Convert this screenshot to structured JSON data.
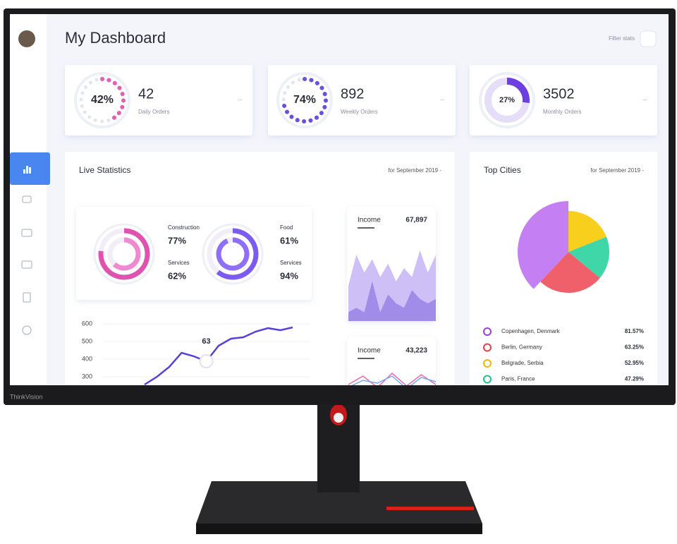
{
  "bezel": {
    "brand": "ThinkVision"
  },
  "header": {
    "title": "My Dashboard",
    "filter_label": "Filter stats"
  },
  "stat_cards": [
    {
      "percent": {
        "value": 42,
        "label": "42%"
      },
      "value": 42,
      "caption": "Daily Orders",
      "more": "...",
      "color": "#e25fb3"
    },
    {
      "percent": {
        "value": 74,
        "label": "74%"
      },
      "value": 892,
      "caption": "Weekly Orders",
      "more": "...",
      "color": "#6a4fe0"
    },
    {
      "percent": {
        "value": 27,
        "label": "27%"
      },
      "value": 3502,
      "caption": "Monthly Orders",
      "more": "...",
      "color": "#6b3fe0"
    }
  ],
  "live_statistics": {
    "title": "Live Statistics",
    "period": "for September 2019 -",
    "rings": [
      {
        "label": "Construction",
        "percent": {
          "value": 77,
          "label": "77%"
        },
        "color": "#e052b0"
      },
      {
        "label": "Services",
        "percent": {
          "value": 62,
          "label": "62%"
        },
        "color": "#f08ad0"
      },
      {
        "label": "Food",
        "percent": {
          "value": 61,
          "label": "61%"
        },
        "color": "#7a5cf0"
      },
      {
        "label": "Services",
        "percent": {
          "value": 94,
          "label": "94%"
        },
        "color": "#8f6ff5"
      }
    ],
    "line_chart": {
      "ylim": [
        250,
        600
      ],
      "yticks": [
        600,
        500,
        400,
        300
      ],
      "color": "#5b3fd6",
      "values": [
        256,
        300,
        356,
        436,
        416,
        388,
        476,
        516,
        524,
        556,
        576,
        564,
        580
      ],
      "annotation": "63"
    }
  },
  "income_cards": [
    {
      "title": "Income",
      "value": "67,897",
      "ylim": [
        0,
        100
      ],
      "series": [
        {
          "color": "#c9b8f5",
          "values": [
            40,
            75,
            55,
            70,
            50,
            65,
            45,
            60,
            50,
            80,
            55,
            75
          ]
        },
        {
          "color": "#9d86e8",
          "values": [
            10,
            15,
            10,
            45,
            10,
            30,
            20,
            15,
            35,
            25,
            20,
            25
          ]
        }
      ]
    },
    {
      "title": "Income",
      "value": "43,223",
      "ylim": [
        0,
        100
      ],
      "series": [
        {
          "color": "#e86aa8",
          "values": [
            30,
            60,
            20,
            70,
            25,
            65,
            30
          ]
        },
        {
          "color": "#7aa8f0",
          "values": [
            20,
            45,
            35,
            60,
            15,
            55,
            40
          ]
        }
      ]
    }
  ],
  "top_cities": {
    "title": "Top Cities",
    "period": "for September 2019 -",
    "pie": [
      {
        "color": "#f7cf1c",
        "value": 19
      },
      {
        "color": "#3fd6a8",
        "value": 17
      },
      {
        "color": "#f0606a",
        "value": 26
      },
      {
        "color": "#c47ff2",
        "value": 38
      }
    ],
    "cities": [
      {
        "name": "Copenhagen, Denmark",
        "share": "81.57%",
        "color": "#9b3fd6"
      },
      {
        "name": "Berlin, Germany",
        "share": "63.25%",
        "color": "#e0404a"
      },
      {
        "name": "Belgrade, Serbia",
        "share": "52.95%",
        "color": "#f0b800"
      },
      {
        "name": "Paris, France",
        "share": "47.29%",
        "color": "#20c08a"
      }
    ]
  }
}
